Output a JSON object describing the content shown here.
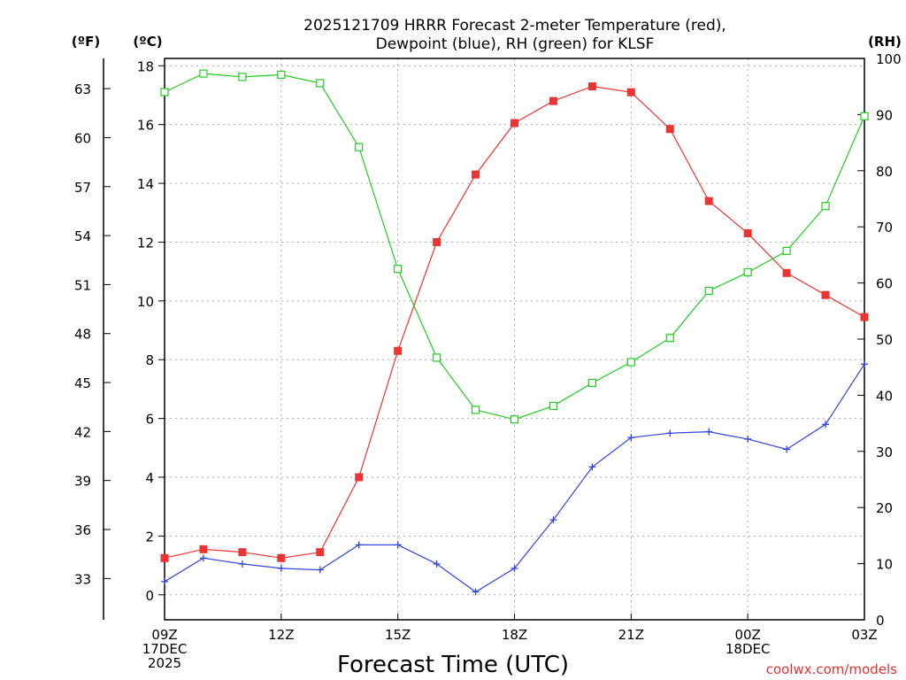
{
  "chart_data": {
    "type": "line",
    "title": "2025121709 HRRR Forecast 2-meter Temperature (red),",
    "subtitle": "Dewpoint (blue), RH (green) for KLSF",
    "xlabel": "Forecast Time (UTC)",
    "credit": "coolwx.com/models",
    "units": {
      "fahrenheit": "(ºF)",
      "celsius": "(ºC)",
      "rh": "(RH)"
    },
    "x_hours": [
      0,
      1,
      2,
      3,
      4,
      5,
      6,
      7,
      8,
      9,
      10,
      11,
      12,
      13,
      14,
      15,
      16,
      17,
      18
    ],
    "x_ticks": [
      {
        "hour": 0,
        "lines": [
          "09Z",
          "17DEC",
          "2025"
        ]
      },
      {
        "hour": 3,
        "lines": [
          "12Z"
        ]
      },
      {
        "hour": 6,
        "lines": [
          "15Z"
        ]
      },
      {
        "hour": 9,
        "lines": [
          "18Z"
        ]
      },
      {
        "hour": 12,
        "lines": [
          "21Z"
        ]
      },
      {
        "hour": 15,
        "lines": [
          "00Z",
          "18DEC"
        ]
      },
      {
        "hour": 18,
        "lines": [
          "03Z"
        ]
      }
    ],
    "xlim": [
      0,
      18
    ],
    "celsius_ticks": [
      "0",
      "2",
      "4",
      "6",
      "8",
      "10",
      "12",
      "14",
      "16",
      "18"
    ],
    "fahrenheit_ticks": [
      "33",
      "36",
      "39",
      "42",
      "45",
      "48",
      "51",
      "54",
      "57",
      "60",
      "63"
    ],
    "rh_ticks": [
      "0",
      "10",
      "20",
      "30",
      "40",
      "50",
      "60",
      "70",
      "80",
      "90",
      "100"
    ],
    "ylim_celsius": [
      -0.85,
      18.25
    ],
    "ylim_rh": [
      0,
      100
    ],
    "series": [
      {
        "name": "Temperature",
        "axis": "celsius",
        "color": "#ee3333",
        "marker": "filled-square",
        "values": [
          1.25,
          1.55,
          1.45,
          1.25,
          1.45,
          4.0,
          8.3,
          12.0,
          14.3,
          16.05,
          16.8,
          17.3,
          17.1,
          15.85,
          13.4,
          12.3,
          10.95,
          10.2,
          9.45
        ]
      },
      {
        "name": "Dewpoint",
        "axis": "celsius",
        "color": "#3344dd",
        "marker": "plus",
        "values": [
          0.45,
          1.25,
          1.05,
          0.9,
          0.85,
          1.7,
          1.7,
          1.05,
          0.1,
          0.9,
          2.55,
          4.35,
          5.35,
          5.5,
          5.55,
          5.3,
          4.95,
          5.8,
          7.85
        ]
      },
      {
        "name": "RH",
        "axis": "rh",
        "color": "#22cc22",
        "marker": "open-square",
        "values": [
          94,
          97.3,
          96.7,
          97.1,
          95.6,
          84.2,
          62.5,
          46.7,
          37.4,
          35.7,
          38.1,
          42.2,
          45.9,
          50.2,
          58.6,
          61.9,
          65.7,
          73.7,
          89.7
        ]
      }
    ]
  }
}
